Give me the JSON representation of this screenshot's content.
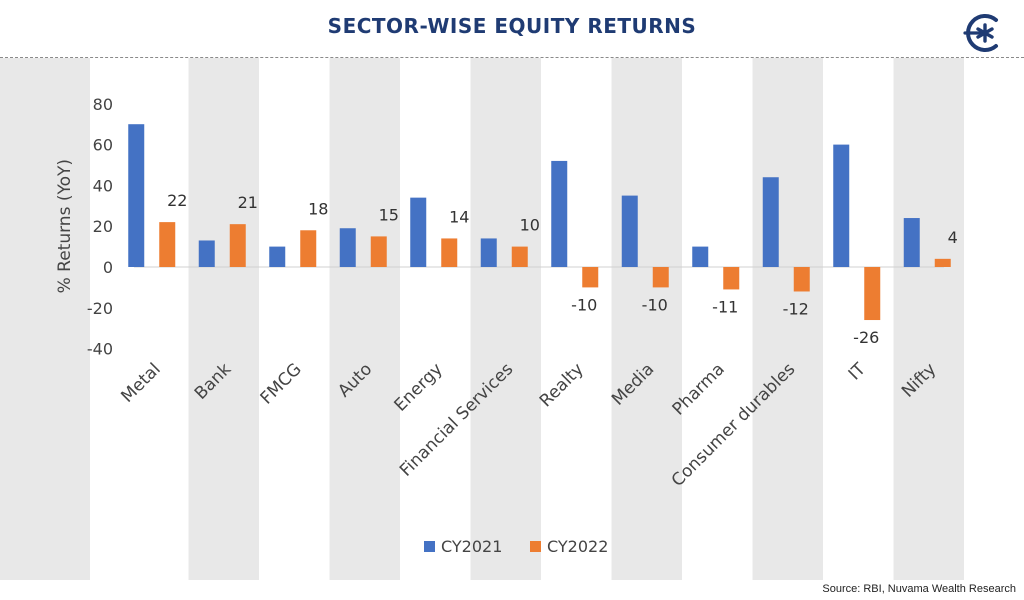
{
  "header": {
    "title": "SECTOR-WISE EQUITY RETURNS"
  },
  "logo": {
    "icon": "asterisk-logo-icon",
    "color": "#1f3b73"
  },
  "source": "Source: RBI, Nuvama Wealth Research",
  "chart_data": {
    "type": "bar",
    "ylabel": "% Returns (YoY)",
    "ylim": [
      -40,
      80
    ],
    "yticks": [
      80,
      60,
      40,
      20,
      0,
      -20,
      -40
    ],
    "ytick_labels": [
      "80",
      "60",
      "40",
      "20",
      "0",
      "-20",
      "-40"
    ],
    "categories": [
      "Metal",
      "Bank",
      "FMCG",
      "Auto",
      "Energy",
      "Financial Services",
      "Realty",
      "Media",
      "Pharma",
      "Consumer durables",
      "IT",
      "Nifty"
    ],
    "series": [
      {
        "name": "CY2021",
        "color": "#4472c4",
        "values": [
          70,
          13,
          10,
          19,
          34,
          14,
          52,
          35,
          10,
          44,
          60,
          24
        ]
      },
      {
        "name": "CY2022",
        "color": "#ed7d31",
        "values": [
          22,
          21,
          18,
          15,
          14,
          10,
          -10,
          -10,
          -11,
          -12,
          -26,
          4
        ],
        "labels": [
          "22",
          "21",
          "18",
          "15",
          "14",
          "10",
          "-10",
          "-10",
          "-11",
          "-12",
          "-26",
          "4"
        ]
      }
    ],
    "legend": "bottom",
    "grid": false,
    "alternating_bands": true
  }
}
